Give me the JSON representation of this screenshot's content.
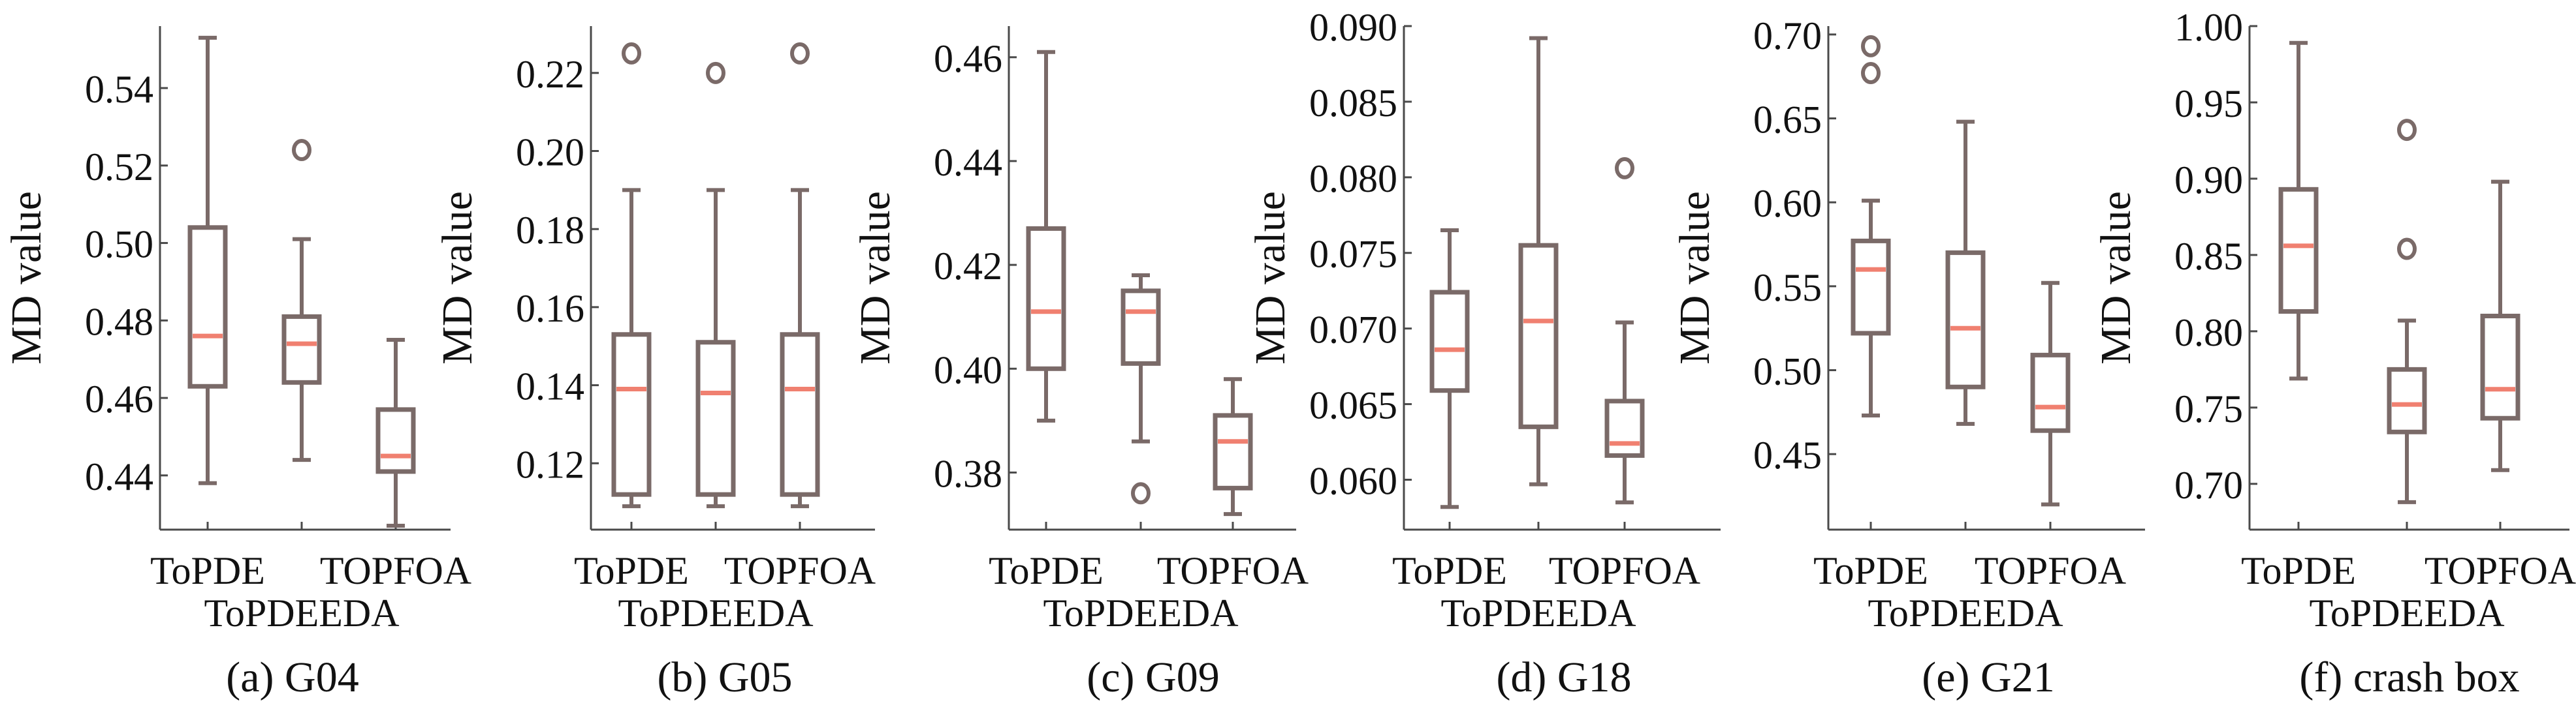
{
  "figure": {
    "ylabel": "MD value",
    "categories": [
      "ToPDE",
      "ToPDEEDA",
      "TOPFOA"
    ]
  },
  "colors": {
    "box": "#7a6a68",
    "median": "#f08070",
    "axis": "#4a4a4a"
  },
  "chart_data": [
    {
      "type": "box",
      "caption": "(a) G04",
      "ylabel": "MD value",
      "categories": [
        "ToPDE",
        "ToPDEEDA",
        "TOPFOA"
      ],
      "yticks": [
        "0.44",
        "0.46",
        "0.48",
        "0.50",
        "0.52",
        "0.54"
      ],
      "ylim": [
        0.426,
        0.556
      ],
      "boxes": [
        {
          "name": "ToPDE",
          "min": 0.438,
          "q1": 0.463,
          "median": 0.476,
          "q3": 0.504,
          "max": 0.553,
          "outliers": []
        },
        {
          "name": "ToPDEEDA",
          "min": 0.444,
          "q1": 0.464,
          "median": 0.474,
          "q3": 0.481,
          "max": 0.501,
          "outliers": [
            0.524
          ]
        },
        {
          "name": "TOPFOA",
          "min": 0.427,
          "q1": 0.441,
          "median": 0.445,
          "q3": 0.457,
          "max": 0.475,
          "outliers": []
        }
      ]
    },
    {
      "type": "box",
      "caption": "(b) G05",
      "ylabel": "MD value",
      "categories": [
        "ToPDE",
        "ToPDEEDA",
        "TOPFOA"
      ],
      "yticks": [
        "0.12",
        "0.14",
        "0.16",
        "0.18",
        "0.20",
        "0.22"
      ],
      "ylim": [
        0.103,
        0.232
      ],
      "boxes": [
        {
          "name": "ToPDE",
          "min": 0.109,
          "q1": 0.112,
          "median": 0.139,
          "q3": 0.153,
          "max": 0.19,
          "outliers": [
            0.225
          ]
        },
        {
          "name": "ToPDEEDA",
          "min": 0.109,
          "q1": 0.112,
          "median": 0.138,
          "q3": 0.151,
          "max": 0.19,
          "outliers": [
            0.22
          ]
        },
        {
          "name": "TOPFOA",
          "min": 0.109,
          "q1": 0.112,
          "median": 0.139,
          "q3": 0.153,
          "max": 0.19,
          "outliers": [
            0.225
          ]
        }
      ]
    },
    {
      "type": "box",
      "caption": "(c) G09",
      "ylabel": "MD value",
      "categories": [
        "ToPDE",
        "ToPDEEDA",
        "TOPFOA"
      ],
      "yticks": [
        "0.38",
        "0.40",
        "0.42",
        "0.44",
        "0.46"
      ],
      "ylim": [
        0.369,
        0.466
      ],
      "boxes": [
        {
          "name": "ToPDE",
          "min": 0.39,
          "q1": 0.4,
          "median": 0.411,
          "q3": 0.427,
          "max": 0.461,
          "outliers": []
        },
        {
          "name": "ToPDEEDA",
          "min": 0.386,
          "q1": 0.401,
          "median": 0.411,
          "q3": 0.415,
          "max": 0.418,
          "outliers": [
            0.376
          ]
        },
        {
          "name": "TOPFOA",
          "min": 0.372,
          "q1": 0.377,
          "median": 0.386,
          "q3": 0.391,
          "max": 0.398,
          "outliers": []
        }
      ]
    },
    {
      "type": "box",
      "caption": "(d) G18",
      "ylabel": "MD value",
      "categories": [
        "ToPDE",
        "ToPDEEDA",
        "TOPFOA"
      ],
      "yticks": [
        "0.060",
        "0.065",
        "0.070",
        "0.075",
        "0.080",
        "0.085",
        "0.090"
      ],
      "ylim": [
        0.0567,
        0.09
      ],
      "boxes": [
        {
          "name": "ToPDE",
          "min": 0.0582,
          "q1": 0.0659,
          "median": 0.0686,
          "q3": 0.0724,
          "max": 0.0765,
          "outliers": []
        },
        {
          "name": "ToPDEEDA",
          "min": 0.0597,
          "q1": 0.0635,
          "median": 0.0705,
          "q3": 0.0755,
          "max": 0.0892,
          "outliers": []
        },
        {
          "name": "TOPFOA",
          "min": 0.0585,
          "q1": 0.0616,
          "median": 0.0624,
          "q3": 0.0652,
          "max": 0.0704,
          "outliers": [
            0.0806
          ]
        }
      ]
    },
    {
      "type": "box",
      "caption": "(e) G21",
      "ylabel": "MD value",
      "categories": [
        "ToPDE",
        "ToPDEEDA",
        "TOPFOA"
      ],
      "yticks": [
        "0.45",
        "0.50",
        "0.55",
        "0.60",
        "0.65",
        "0.70"
      ],
      "ylim": [
        0.405,
        0.705
      ],
      "boxes": [
        {
          "name": "ToPDE",
          "min": 0.473,
          "q1": 0.522,
          "median": 0.56,
          "q3": 0.577,
          "max": 0.601,
          "outliers": [
            0.677,
            0.693
          ]
        },
        {
          "name": "ToPDEEDA",
          "min": 0.468,
          "q1": 0.49,
          "median": 0.525,
          "q3": 0.57,
          "max": 0.648,
          "outliers": []
        },
        {
          "name": "TOPFOA",
          "min": 0.42,
          "q1": 0.464,
          "median": 0.478,
          "q3": 0.509,
          "max": 0.552,
          "outliers": []
        }
      ]
    },
    {
      "type": "box",
      "caption": "(f) crash box",
      "ylabel": "MD value",
      "categories": [
        "ToPDE",
        "ToPDEEDA",
        "TOPFOA"
      ],
      "yticks": [
        "0.70",
        "0.75",
        "0.80",
        "0.85",
        "0.90",
        "0.95",
        "1.00"
      ],
      "ylim": [
        0.67,
        1.0
      ],
      "boxes": [
        {
          "name": "ToPDE",
          "min": 0.769,
          "q1": 0.813,
          "median": 0.856,
          "q3": 0.893,
          "max": 0.989,
          "outliers": []
        },
        {
          "name": "ToPDEEDA",
          "min": 0.688,
          "q1": 0.734,
          "median": 0.752,
          "q3": 0.775,
          "max": 0.807,
          "outliers": [
            0.854,
            0.932
          ]
        },
        {
          "name": "TOPFOA",
          "min": 0.709,
          "q1": 0.743,
          "median": 0.762,
          "q3": 0.81,
          "max": 0.898,
          "outliers": []
        }
      ]
    }
  ]
}
